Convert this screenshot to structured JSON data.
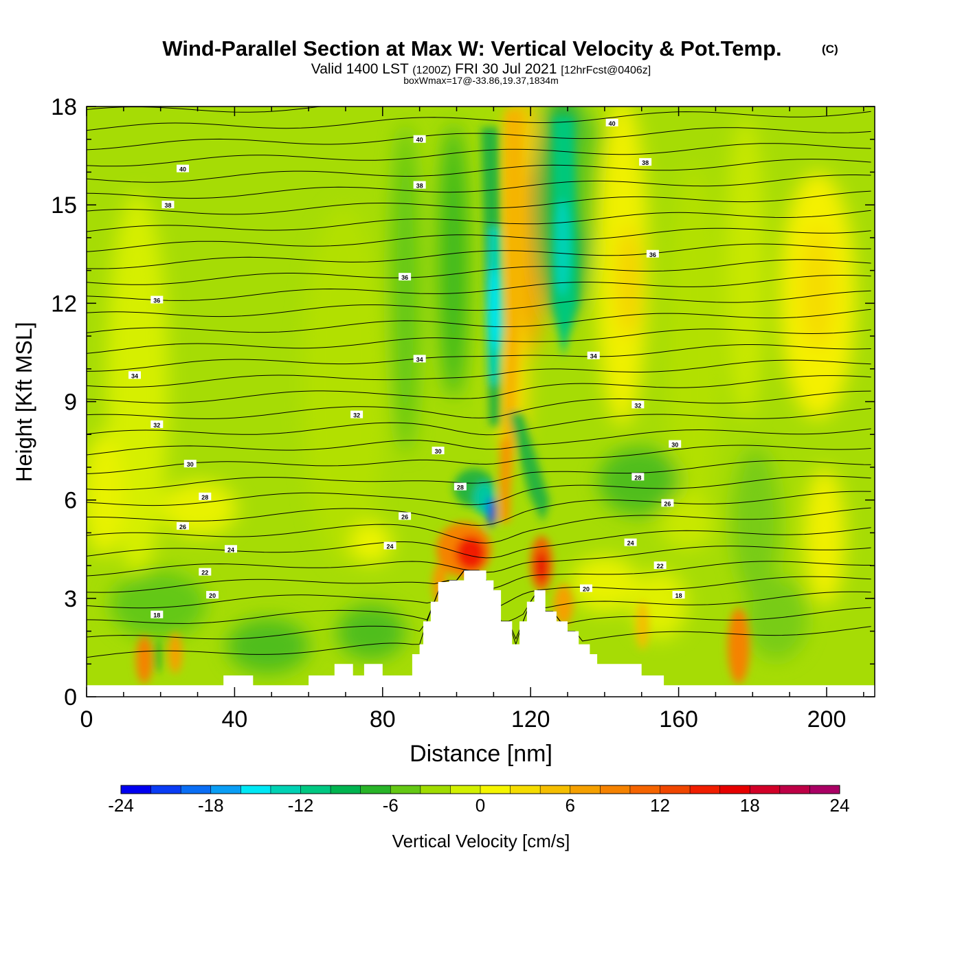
{
  "header": {
    "title": "Wind-Parallel Section at Max W: Vertical Velocity & Pot.Temp.",
    "copyright": "(C)",
    "subtitle_main_a": "Valid 1400 LST",
    "subtitle_small_a": "(1200Z)",
    "subtitle_main_b": "FRI 30 Jul 2021",
    "subtitle_small_b": "[12hrFcst@0406z]",
    "subtitle_line3": "boxWmax=17@-33.86,19.37,1834m"
  },
  "chart_data": {
    "type": "heatmap",
    "xlabel": "Distance [nm]",
    "ylabel": "Height [Kft MSL]",
    "xlim": [
      0,
      213
    ],
    "ylim": [
      0,
      18
    ],
    "x_ticks": [
      "0",
      "40",
      "80",
      "120",
      "160",
      "200"
    ],
    "y_ticks": [
      "0",
      "3",
      "6",
      "9",
      "12",
      "15",
      "18"
    ],
    "colorbar": {
      "label": "Vertical Velocity [cm/s]",
      "range": [
        -24,
        24
      ],
      "ticks": [
        "-24",
        "-18",
        "-12",
        "-6",
        "0",
        "6",
        "12",
        "18",
        "24"
      ],
      "colors": [
        "#0000f0",
        "#0a3cf5",
        "#0a6ef5",
        "#0a9ef5",
        "#00e8f5",
        "#00d2b4",
        "#00c882",
        "#00b450",
        "#28b428",
        "#64c814",
        "#a0dc00",
        "#d2f000",
        "#f5f500",
        "#f5dc00",
        "#f5be00",
        "#f5a000",
        "#f58200",
        "#f56400",
        "#f04600",
        "#f01e00",
        "#e60000",
        "#d20028",
        "#be0046",
        "#aa0064"
      ]
    },
    "terrain_profile": {
      "x": [
        0,
        37,
        37,
        45,
        45,
        60,
        60,
        67,
        67,
        72,
        72,
        75,
        75,
        80,
        80,
        88,
        88,
        90,
        90,
        91,
        91,
        93,
        93,
        95,
        95,
        98,
        98,
        102,
        102,
        108,
        108,
        110,
        110,
        112,
        112,
        115,
        115,
        117,
        117,
        119,
        119,
        121,
        121,
        124,
        124,
        127,
        127,
        130,
        130,
        133,
        133,
        136,
        136,
        138,
        138,
        140,
        140,
        150,
        150,
        156,
        156,
        164,
        164,
        213
      ],
      "height_kft": [
        0.35,
        0.35,
        0.65,
        0.65,
        0.35,
        0.35,
        0.65,
        0.65,
        1.0,
        1.0,
        0.65,
        0.65,
        1.0,
        1.0,
        0.65,
        0.65,
        1.3,
        1.3,
        1.6,
        1.6,
        2.3,
        2.3,
        2.9,
        2.9,
        3.5,
        3.5,
        3.55,
        3.55,
        3.85,
        3.85,
        3.55,
        3.55,
        3.25,
        3.25,
        2.3,
        2.3,
        1.6,
        1.6,
        2.3,
        2.3,
        2.9,
        2.9,
        3.25,
        3.25,
        2.6,
        2.6,
        2.3,
        2.3,
        2.0,
        2.0,
        1.6,
        1.6,
        1.3,
        1.3,
        1.0,
        1.0,
        1.0,
        1.0,
        0.65,
        0.65,
        0.35,
        0.35,
        0.35,
        0.35
      ]
    },
    "theta_contour_labels": [
      {
        "value": "40",
        "x": 26,
        "y": 16.1
      },
      {
        "value": "40",
        "x": 90,
        "y": 17.0
      },
      {
        "value": "40",
        "x": 142,
        "y": 17.5
      },
      {
        "value": "38",
        "x": 22,
        "y": 15.0
      },
      {
        "value": "38",
        "x": 90,
        "y": 15.6
      },
      {
        "value": "38",
        "x": 151,
        "y": 16.3
      },
      {
        "value": "36",
        "x": 19,
        "y": 12.1
      },
      {
        "value": "36",
        "x": 86,
        "y": 12.8
      },
      {
        "value": "36",
        "x": 153,
        "y": 13.5
      },
      {
        "value": "34",
        "x": 13,
        "y": 9.8
      },
      {
        "value": "34",
        "x": 90,
        "y": 10.3
      },
      {
        "value": "34",
        "x": 137,
        "y": 10.4
      },
      {
        "value": "32",
        "x": 19,
        "y": 8.3
      },
      {
        "value": "32",
        "x": 73,
        "y": 8.6
      },
      {
        "value": "32",
        "x": 149,
        "y": 8.9
      },
      {
        "value": "30",
        "x": 28,
        "y": 7.1
      },
      {
        "value": "30",
        "x": 95,
        "y": 7.5
      },
      {
        "value": "30",
        "x": 159,
        "y": 7.7
      },
      {
        "value": "28",
        "x": 32,
        "y": 6.1
      },
      {
        "value": "28",
        "x": 101,
        "y": 6.4
      },
      {
        "value": "28",
        "x": 149,
        "y": 6.7
      },
      {
        "value": "26",
        "x": 26,
        "y": 5.2
      },
      {
        "value": "26",
        "x": 86,
        "y": 5.5
      },
      {
        "value": "26",
        "x": 157,
        "y": 5.9
      },
      {
        "value": "24",
        "x": 39,
        "y": 4.5
      },
      {
        "value": "24",
        "x": 82,
        "y": 4.6
      },
      {
        "value": "24",
        "x": 147,
        "y": 4.7
      },
      {
        "value": "22",
        "x": 32,
        "y": 3.8
      },
      {
        "value": "22",
        "x": 155,
        "y": 4.0
      },
      {
        "value": "20",
        "x": 34,
        "y": 3.1
      },
      {
        "value": "20",
        "x": 135,
        "y": 3.3
      },
      {
        "value": "18",
        "x": 19,
        "y": 2.5
      },
      {
        "value": "18",
        "x": 160,
        "y": 3.1
      }
    ]
  }
}
